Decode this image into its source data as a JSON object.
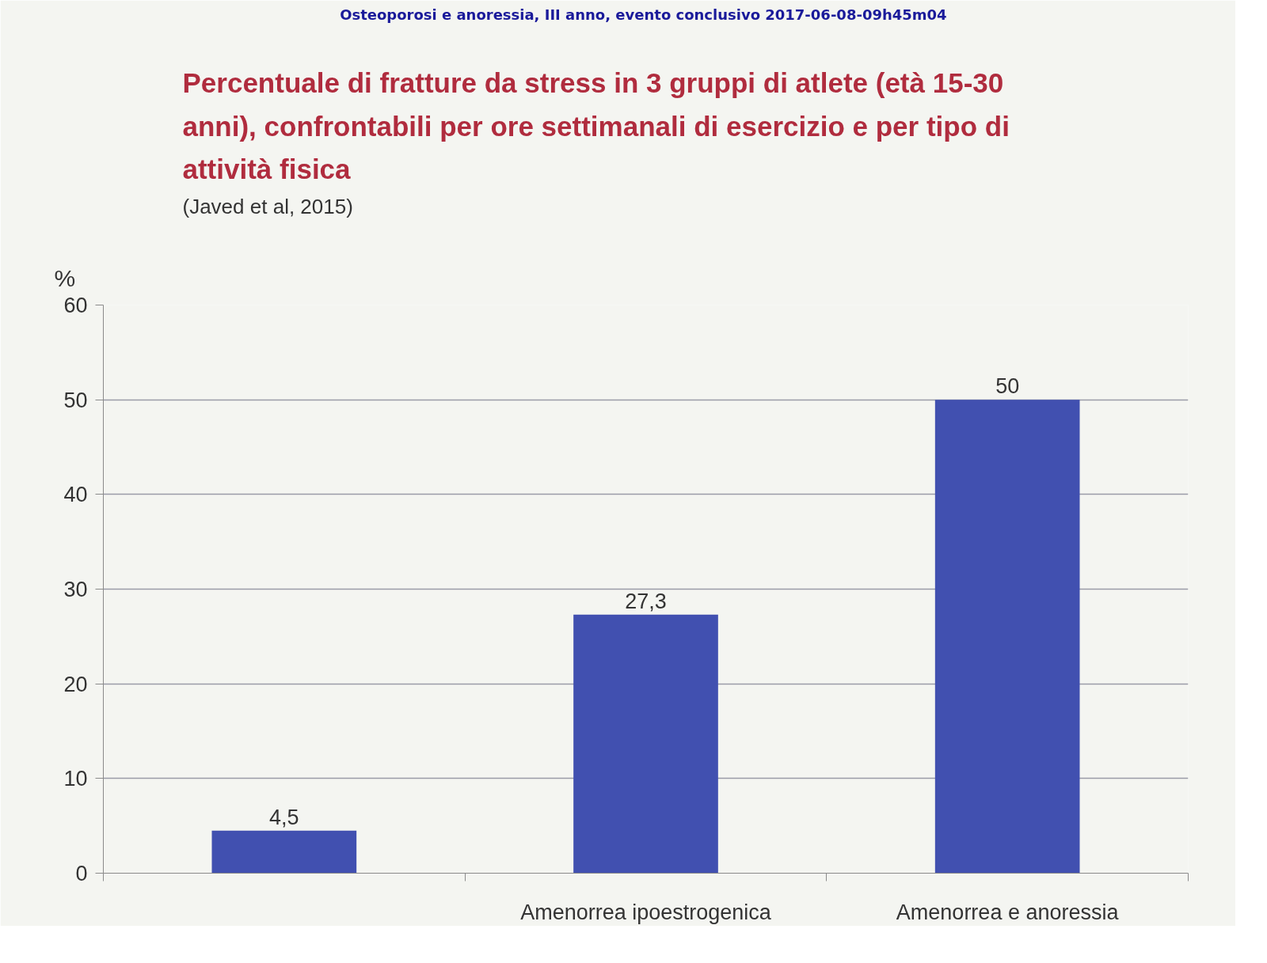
{
  "chart_data": {
    "type": "bar",
    "title": "Percentuale di fratture da stress in 3 gruppi di atlete (età 15-30 anni), confrontabili per ore settimanali di esercizio e per tipo di attività fisica",
    "ylabel": "%",
    "annotations": [
      "Osteoporosi e anoressia, III anno, evento conclusivo  2017-06-08-09h45m04",
      "(Javed et al, 2015)"
    ],
    "categories": [
      null,
      "Amenorrea ipoestrogenica",
      "Amenorrea e anoressia"
    ],
    "values": [
      4.5,
      27.3,
      50
    ],
    "value_labels": [
      "4,5",
      "27,3",
      "50"
    ],
    "color": "#4150b0",
    "ylim": [
      0,
      60
    ],
    "yticks": [
      0,
      10,
      20,
      30,
      40,
      50,
      60
    ],
    "grid": "y"
  }
}
